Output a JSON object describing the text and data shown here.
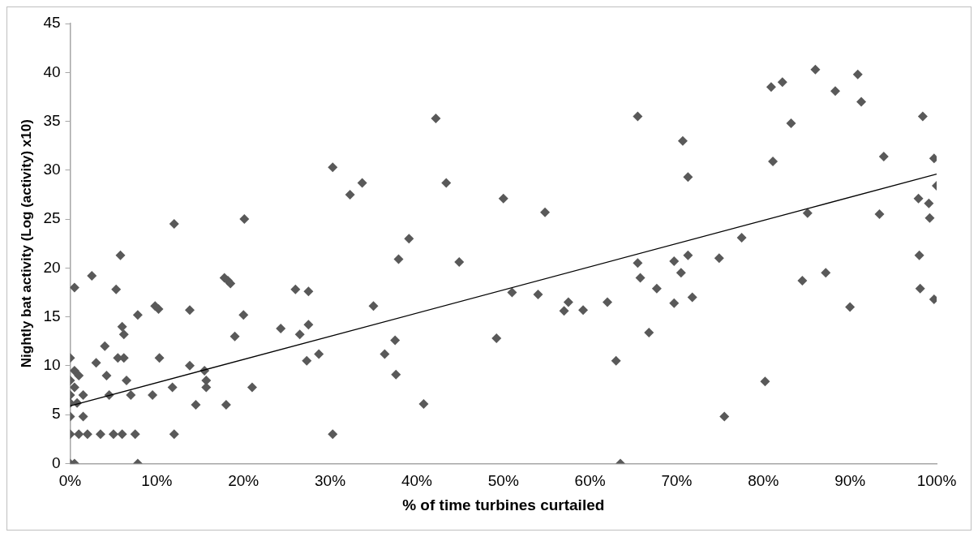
{
  "chart_data": {
    "type": "scatter",
    "xlabel": "% of time turbines curtailed",
    "ylabel": "Nightly bat activity (Log (activity) x10)",
    "legend": false,
    "grid": false,
    "xlim": [
      0,
      100
    ],
    "xticks": [
      {
        "value": 0,
        "label": "0%"
      },
      {
        "value": 10,
        "label": "10%"
      },
      {
        "value": 20,
        "label": "20%"
      },
      {
        "value": 30,
        "label": "30%"
      },
      {
        "value": 40,
        "label": "40%"
      },
      {
        "value": 50,
        "label": "50%"
      },
      {
        "value": 60,
        "label": "60%"
      },
      {
        "value": 70,
        "label": "70%"
      },
      {
        "value": 80,
        "label": "80%"
      },
      {
        "value": 90,
        "label": "90%"
      },
      {
        "value": 100,
        "label": "100%"
      }
    ],
    "ylim": [
      0,
      45
    ],
    "yticks": [
      0,
      5,
      10,
      15,
      20,
      25,
      30,
      35,
      40,
      45
    ],
    "series": [
      {
        "marker": "diamond",
        "color": "#595959",
        "x": [
          0,
          0.5,
          0,
          0,
          0,
          0,
          0,
          0,
          0.5,
          0.5,
          1,
          0.8,
          1,
          0.5,
          1.5,
          1.5,
          2,
          2.5,
          3,
          3.5,
          4,
          4.2,
          4.5,
          5,
          5.3,
          5.5,
          5.8,
          6,
          6.2,
          6.2,
          6.5,
          6,
          7,
          7.5,
          7.8,
          7.8,
          9.5,
          9.8,
          10.2,
          10.3,
          11.8,
          12,
          12,
          13.8,
          13.8,
          14.5,
          15.5,
          15.7,
          15.7,
          17.8,
          18.2,
          18.5,
          18,
          19,
          20,
          20.1,
          21,
          24.3,
          26,
          26.5,
          27.3,
          27.5,
          27.5,
          28.7,
          30.3,
          30.3,
          32.3,
          33.7,
          35,
          36.3,
          37.5,
          37.6,
          37.9,
          39.1,
          40.8,
          42.2,
          43.4,
          44.9,
          49.2,
          50,
          51,
          54,
          54.8,
          57,
          57.5,
          59.2,
          62,
          63,
          63.5,
          65.5,
          65.5,
          65.8,
          66.8,
          67.7,
          69.7,
          69.7,
          70.5,
          70.7,
          71.3,
          71.3,
          71.8,
          74.9,
          75.5,
          77.5,
          80.2,
          80.9,
          81.1,
          82.2,
          83.2,
          84.5,
          85.1,
          86,
          87.2,
          88.3,
          90,
          90.9,
          91.3,
          93.4,
          93.9,
          98,
          98.1,
          97.9,
          98.4,
          99.1,
          99.2,
          99.7,
          99.7,
          100
        ],
        "values": [
          0,
          0,
          3,
          4.8,
          6.2,
          7,
          8.5,
          10.8,
          7.8,
          9.5,
          9,
          6.2,
          3,
          18,
          7,
          4.8,
          3,
          19.2,
          10.3,
          3,
          12,
          9,
          7,
          3,
          17.8,
          10.8,
          21.3,
          14,
          13.2,
          10.8,
          8.5,
          3,
          7,
          3,
          15.2,
          0,
          7,
          16.1,
          15.8,
          10.8,
          7.8,
          24.5,
          3,
          15.7,
          10,
          6,
          9.5,
          8.5,
          7.8,
          19,
          18.7,
          18.4,
          6,
          13,
          15.2,
          25,
          7.8,
          13.8,
          17.8,
          13.2,
          10.5,
          14.2,
          17.6,
          11.2,
          30.3,
          3,
          27.5,
          28.7,
          16.1,
          11.2,
          12.6,
          9.1,
          20.9,
          23,
          6.1,
          35.3,
          28.7,
          20.6,
          12.8,
          27.1,
          17.5,
          17.3,
          25.7,
          15.6,
          16.5,
          15.7,
          16.5,
          10.5,
          0,
          35.5,
          20.5,
          19,
          13.4,
          17.9,
          20.7,
          16.4,
          19.5,
          33,
          21.3,
          29.3,
          17,
          21,
          4.8,
          23.1,
          8.4,
          38.5,
          30.9,
          39,
          34.8,
          18.7,
          25.6,
          40.3,
          19.5,
          38.1,
          16,
          39.8,
          37,
          25.5,
          31.4,
          21.3,
          17.9,
          27.1,
          35.5,
          26.6,
          25.1,
          31.2,
          16.8,
          28.4
        ]
      },
      {
        "type": "line",
        "color": "#000000",
        "x": [
          0,
          100
        ],
        "values": [
          5.9,
          29.6
        ]
      }
    ]
  }
}
